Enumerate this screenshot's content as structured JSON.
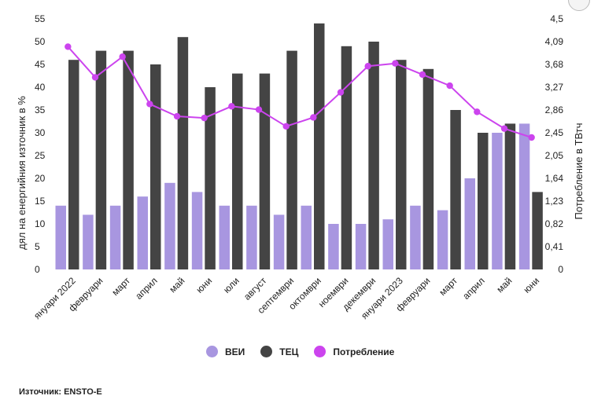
{
  "chart_data": {
    "type": "bar",
    "categories": [
      "януари 2022",
      "февруари",
      "март",
      "април",
      "май",
      "юни",
      "юли",
      "август",
      "септември",
      "октомври",
      "ноември",
      "декември",
      "януари 2023",
      "февруари",
      "март",
      "април",
      "май",
      "юни"
    ],
    "series": [
      {
        "name": "ВЕИ",
        "type": "bar",
        "axis": "left",
        "color": "#a896e0",
        "values": [
          14,
          12,
          14,
          16,
          19,
          17,
          14,
          14,
          12,
          14,
          10,
          10,
          11,
          14,
          13,
          20,
          30,
          32
        ]
      },
      {
        "name": "ТЕЦ",
        "type": "bar",
        "axis": "left",
        "color": "#444444",
        "values": [
          46,
          48,
          48,
          45,
          51,
          40,
          43,
          43,
          48,
          54,
          49,
          50,
          46,
          44,
          35,
          30,
          32,
          17
        ]
      },
      {
        "name": "Потребление",
        "type": "line",
        "axis": "right",
        "color": "#cc44ee",
        "values": [
          4.0,
          3.45,
          3.82,
          2.97,
          2.75,
          2.72,
          2.93,
          2.87,
          2.57,
          2.73,
          3.18,
          3.65,
          3.7,
          3.5,
          3.3,
          2.83,
          2.53,
          2.37
        ]
      }
    ],
    "y_left": {
      "label": "дял на енергийния източник в %",
      "ylim": [
        0,
        55
      ],
      "ticks": [
        "0",
        "5",
        "10",
        "15",
        "20",
        "25",
        "30",
        "35",
        "40",
        "45",
        "50",
        "55"
      ]
    },
    "y_right": {
      "label": "Потребление в ТВтч",
      "ylim": [
        0,
        4.5
      ],
      "ticks": [
        "0",
        "0,41",
        "0,82",
        "1,23",
        "1,64",
        "2,05",
        "2,45",
        "2,86",
        "3,27",
        "3,68",
        "4,09",
        "4,5"
      ]
    },
    "grid": false,
    "legend": "bottom"
  },
  "legend": {
    "items": [
      {
        "label": "ВЕИ",
        "color": "#a896e0"
      },
      {
        "label": "ТЕЦ",
        "color": "#444444"
      },
      {
        "label": "Потребление",
        "color": "#cc44ee"
      }
    ]
  },
  "source": "Източник: ENSTO-E"
}
